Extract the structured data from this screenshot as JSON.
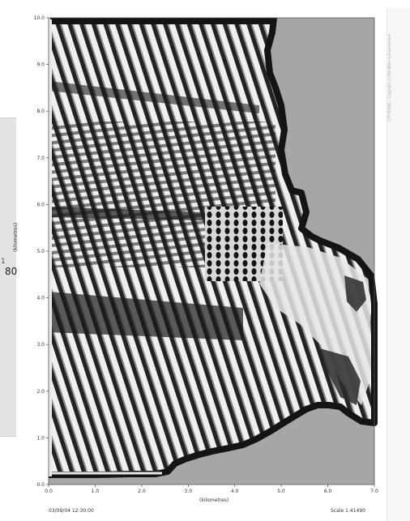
{
  "figure": {
    "axis_y_label": "(kilometres)",
    "axis_x_label": "(kilometres)",
    "y_ticks": [
      "0.0",
      "1.0",
      "2.0",
      "3.0",
      "4.0",
      "5.0",
      "6.0",
      "7.0",
      "8.0",
      "9.0",
      "10.0"
    ],
    "x_ticks": [
      "0.0",
      "1.0",
      "2.0",
      "3.0",
      "4.0",
      "5.0",
      "6.0",
      "7.0"
    ],
    "timestamp": "03/09/04 12:30:00",
    "scale": "Scale 1:41490",
    "credit": "CITY MODEL - Copyright (c) DHI Water & Environment"
  },
  "side_panel": {
    "tick": "1",
    "value": "80"
  },
  "colors": {
    "land": "#a6a6a6",
    "coastline": "#141414",
    "water_light": "#f2f2f2",
    "wave_crest": "#1e1e1e",
    "wave_mid": "#9a9a9a"
  }
}
